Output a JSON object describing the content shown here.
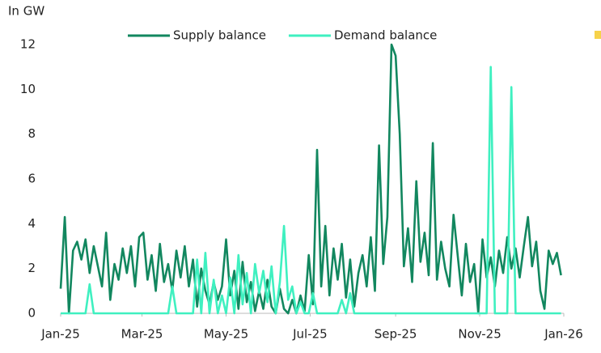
{
  "chart_data": {
    "type": "line",
    "y_label": "In GW",
    "x": [
      0,
      3,
      6,
      9,
      12,
      15,
      18,
      21,
      24,
      27,
      30,
      33,
      36,
      39,
      42,
      45,
      48,
      51,
      54,
      57,
      60,
      63,
      66,
      69,
      72,
      75,
      78,
      81,
      84,
      87,
      90,
      93,
      96,
      99,
      102,
      105,
      108,
      111,
      114,
      117,
      120,
      123,
      126,
      129,
      132,
      135,
      138,
      141,
      144,
      147,
      150,
      153,
      156,
      159,
      162,
      165,
      168,
      171,
      174,
      177,
      180,
      183,
      186,
      189,
      192,
      195,
      198,
      201,
      204,
      207,
      210,
      213,
      216,
      219,
      222,
      225,
      228,
      231,
      234,
      237,
      240,
      243,
      246,
      249,
      252,
      255,
      258,
      261,
      264,
      267,
      270,
      273,
      276,
      279,
      282,
      285,
      288,
      291,
      294,
      297,
      300,
      303,
      306,
      309,
      312,
      315,
      318,
      321,
      324,
      327,
      330,
      333,
      336,
      339,
      342,
      345,
      348,
      351,
      354,
      357,
      360,
      363
    ],
    "series": [
      {
        "name": "Supply balance",
        "color": "#12875f",
        "values": [
          1.1,
          4.3,
          0,
          2.8,
          3.2,
          2.4,
          3.3,
          1.8,
          3.0,
          2.1,
          1.2,
          3.6,
          0.6,
          2.2,
          1.5,
          2.9,
          1.8,
          3.0,
          1.2,
          3.4,
          3.6,
          1.5,
          2.6,
          1.0,
          3.1,
          1.4,
          2.2,
          1.0,
          2.8,
          1.6,
          3.0,
          1.2,
          2.4,
          0.3,
          2.0,
          1.0,
          0.4,
          1.4,
          0.6,
          1.2,
          3.3,
          0.8,
          1.9,
          0.2,
          2.3,
          0.5,
          1.4,
          0.1,
          1.0,
          0.2,
          1.5,
          0.3,
          0.0,
          1.1,
          0.2,
          0.0,
          0.6,
          0.0,
          0.8,
          0.1,
          2.6,
          0.4,
          7.3,
          1.2,
          3.9,
          0.8,
          2.9,
          1.5,
          3.1,
          0.7,
          2.4,
          0.3,
          1.8,
          2.6,
          1.2,
          3.4,
          1.0,
          7.5,
          2.2,
          4.3,
          12,
          11.5,
          8.0,
          2.1,
          3.8,
          1.4,
          5.9,
          2.3,
          3.6,
          1.7,
          7.6,
          1.5,
          3.2,
          2.0,
          1.2,
          4.4,
          2.6,
          0.8,
          3.1,
          1.4,
          2.2,
          0.0,
          3.3,
          1.6,
          2.5,
          1.2,
          2.8,
          1.8,
          3.4,
          2.0,
          2.9,
          1.6,
          3.0,
          4.3,
          2.1,
          3.2,
          1.0,
          0.2,
          2.8,
          2.2,
          2.7,
          1.7
        ]
      },
      {
        "name": "Demand balance",
        "color": "#3ff0c0",
        "values": [
          0,
          0,
          0,
          0,
          0,
          0,
          0,
          1.3,
          0,
          0,
          0,
          0,
          0,
          0,
          0,
          0,
          0,
          0,
          0,
          0,
          0,
          0,
          0,
          0,
          0,
          0,
          0,
          1.2,
          0,
          0,
          0,
          0,
          0,
          2.4,
          0,
          2.7,
          0,
          1.5,
          0,
          0.8,
          0,
          1.6,
          0,
          2.6,
          0.4,
          1.8,
          0,
          2.2,
          0.9,
          1.9,
          0.5,
          2.1,
          0,
          1.4,
          3.9,
          0.6,
          1.2,
          0,
          0.5,
          0,
          0,
          0.9,
          0,
          0,
          0,
          0,
          0,
          0,
          0.6,
          0,
          0.9,
          0,
          0,
          0,
          0,
          0,
          0,
          0,
          0,
          0,
          0,
          0,
          0,
          0,
          0,
          0,
          0,
          0,
          0,
          0,
          0,
          0,
          0,
          0,
          0,
          0,
          0,
          0,
          0,
          0,
          0,
          0,
          0,
          0,
          11.0,
          0,
          0,
          0,
          0,
          10.1,
          0,
          0,
          0,
          0,
          0,
          0,
          0,
          0,
          0,
          0,
          0,
          0
        ]
      }
    ],
    "xlim": [
      0,
      365
    ],
    "xticks": [
      {
        "value": 0,
        "label": "Jan-25"
      },
      {
        "value": 59,
        "label": "Mar-25"
      },
      {
        "value": 120,
        "label": "May-25"
      },
      {
        "value": 181,
        "label": "Jul-25"
      },
      {
        "value": 243,
        "label": "Sep-25"
      },
      {
        "value": 304,
        "label": "Nov-25"
      },
      {
        "value": 365,
        "label": "Jan-26"
      }
    ],
    "ylim": [
      0,
      12
    ],
    "yticks": [
      0,
      2,
      4,
      6,
      8,
      10,
      12
    ],
    "grid": false,
    "legend": "top"
  }
}
